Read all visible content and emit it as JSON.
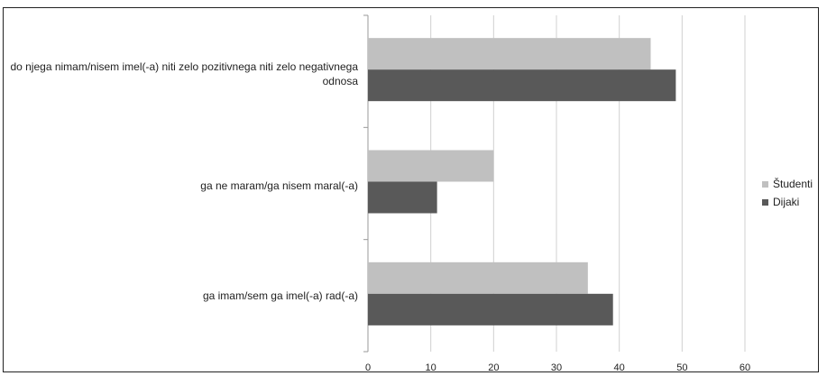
{
  "chart_data": {
    "type": "bar",
    "orientation": "horizontal",
    "categories": [
      "do njega nimam/nisem imel(-a) niti zelo pozitivnega niti zelo negativnega odnosa",
      "ga ne maram/ga nisem maral(-a)",
      "ga imam/sem ga imel(-a) rad(-a)"
    ],
    "series": [
      {
        "name": "Študenti",
        "values": [
          45,
          20,
          35
        ],
        "color": "#c0c0c0"
      },
      {
        "name": "Dijaki",
        "values": [
          49,
          11,
          39
        ],
        "color": "#595959"
      }
    ],
    "xlim": [
      0,
      60
    ],
    "xticks": [
      "0",
      "10",
      "20",
      "30",
      "40",
      "50",
      "60"
    ],
    "grid": true,
    "legend_position": "right"
  }
}
